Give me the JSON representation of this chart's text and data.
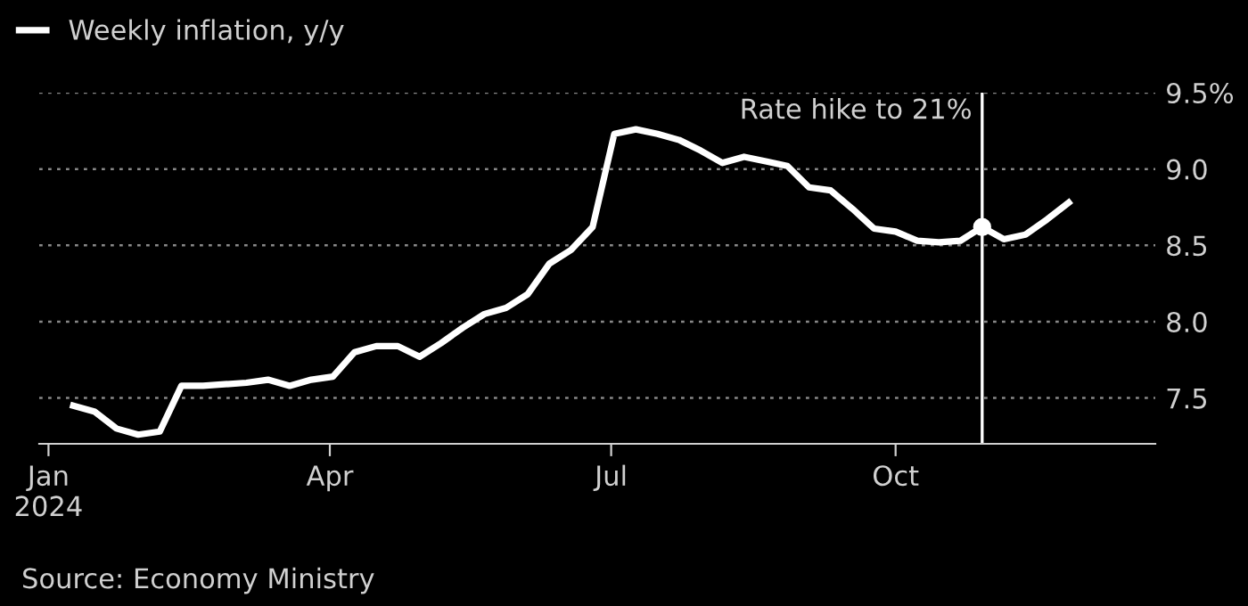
{
  "chart_data": {
    "type": "line",
    "x": [
      "2024-01-09",
      "2024-01-16",
      "2024-01-23",
      "2024-01-30",
      "2024-02-06",
      "2024-02-13",
      "2024-02-20",
      "2024-02-27",
      "2024-03-05",
      "2024-03-12",
      "2024-03-19",
      "2024-03-26",
      "2024-04-02",
      "2024-04-09",
      "2024-04-16",
      "2024-04-23",
      "2024-04-30",
      "2024-05-07",
      "2024-05-14",
      "2024-05-21",
      "2024-05-28",
      "2024-06-04",
      "2024-06-11",
      "2024-06-18",
      "2024-06-25",
      "2024-07-02",
      "2024-07-09",
      "2024-07-16",
      "2024-07-23",
      "2024-07-30",
      "2024-08-06",
      "2024-08-13",
      "2024-08-20",
      "2024-08-27",
      "2024-09-03",
      "2024-09-10",
      "2024-09-17",
      "2024-09-24",
      "2024-10-01",
      "2024-10-08",
      "2024-10-15",
      "2024-10-22",
      "2024-10-29",
      "2024-11-05",
      "2024-11-12",
      "2024-11-19",
      "2024-11-26"
    ],
    "series": [
      {
        "name": "Weekly inflation, y/y",
        "color": "#ffffff",
        "values": [
          7.45,
          7.41,
          7.3,
          7.26,
          7.28,
          7.58,
          7.58,
          7.59,
          7.6,
          7.62,
          7.58,
          7.62,
          7.64,
          7.8,
          7.84,
          7.84,
          7.77,
          7.86,
          7.96,
          8.05,
          8.09,
          8.18,
          8.38,
          8.47,
          8.62,
          9.23,
          9.26,
          9.23,
          9.19,
          9.12,
          9.04,
          9.08,
          9.05,
          9.02,
          8.88,
          8.86,
          8.74,
          8.61,
          8.59,
          8.53,
          8.52,
          8.53,
          8.62,
          8.54,
          8.57,
          8.67,
          8.78
        ]
      },
      {
        "type": "scatter",
        "x": [
          "2024-10-29"
        ],
        "color": "#ffffff",
        "marker": "circle",
        "values": [
          8.62
        ]
      }
    ],
    "xlim": [
      "2023-12-29",
      "2024-12-24"
    ],
    "xticks": [
      {
        "value": "2024-01-01",
        "label": "Jan\n2024"
      },
      {
        "value": "2024-04-01",
        "label": "Apr"
      },
      {
        "value": "2024-07-01",
        "label": "Jul"
      },
      {
        "value": "2024-10-01",
        "label": "Oct"
      }
    ],
    "ylim": [
      7.2,
      9.5
    ],
    "yticks": [
      {
        "value": 7.5,
        "label": "7.5"
      },
      {
        "value": 8.0,
        "label": "8.0"
      },
      {
        "value": 8.5,
        "label": "8.5"
      },
      {
        "value": 9.0,
        "label": "9.0"
      },
      {
        "value": 9.5,
        "label": "9.5%"
      }
    ],
    "grid": "y",
    "legend": "top left",
    "ref_lines": [
      {
        "axis": "x",
        "value": "2024-10-29",
        "label": "Rate hike to 21%",
        "color": "#ffffff"
      }
    ],
    "annotations": [
      "Source: Economy Ministry"
    ]
  }
}
